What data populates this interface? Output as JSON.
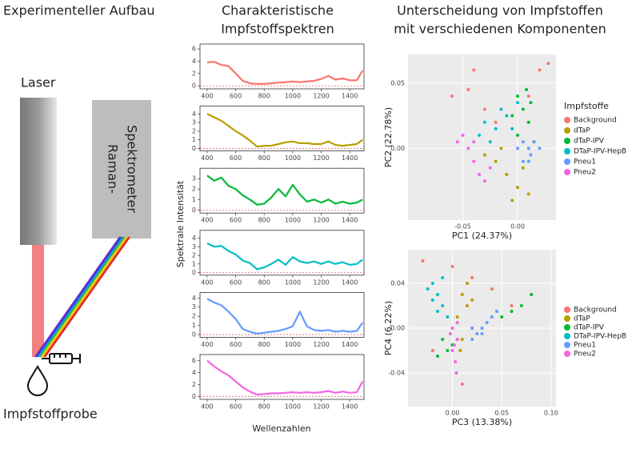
{
  "setup": {
    "title": "Experimenteller Aufbau",
    "laser": "Laser",
    "spectrometer": [
      "Raman-",
      "Spektrometer"
    ],
    "sample": "Impfstoffprobe"
  },
  "spectra": {
    "title": [
      "Charakteristische",
      "Impfstoffspektren"
    ],
    "y_label": "Spektrale Intensität",
    "x_label": "Wellenzahlen"
  },
  "pca": {
    "title": [
      "Unterscheidung von Impfstoffen",
      "mit verschiedenen Komponenten"
    ]
  },
  "chart_data": [
    {
      "type": "line",
      "color": "#f8766d",
      "x": [
        400,
        450,
        500,
        550,
        600,
        650,
        700,
        750,
        800,
        850,
        900,
        950,
        1000,
        1050,
        1100,
        1150,
        1200,
        1250,
        1300,
        1350,
        1400,
        1450,
        1490
      ],
      "values": [
        3.8,
        3.9,
        3.4,
        3.2,
        2.0,
        0.8,
        0.4,
        0.3,
        0.3,
        0.4,
        0.5,
        0.6,
        0.7,
        0.6,
        0.7,
        0.8,
        1.1,
        1.6,
        1.0,
        1.2,
        0.9,
        0.9,
        2.5
      ],
      "xlim": [
        350,
        1500
      ],
      "ylim": [
        -0.5,
        6.8
      ],
      "xticks": [
        400,
        600,
        800,
        1000,
        1200,
        1400
      ],
      "yticks": [
        0,
        2,
        4,
        6
      ]
    },
    {
      "type": "line",
      "color": "#b79f00",
      "x": [
        400,
        450,
        500,
        550,
        600,
        650,
        700,
        750,
        800,
        850,
        900,
        950,
        1000,
        1050,
        1100,
        1150,
        1200,
        1250,
        1300,
        1350,
        1400,
        1450,
        1490
      ],
      "values": [
        4.0,
        3.6,
        3.2,
        2.6,
        2.0,
        1.5,
        0.9,
        0.2,
        0.3,
        0.3,
        0.5,
        0.7,
        0.8,
        0.6,
        0.6,
        0.5,
        0.5,
        0.8,
        0.4,
        0.3,
        0.4,
        0.5,
        1.0
      ],
      "xlim": [
        350,
        1500
      ],
      "ylim": [
        -0.3,
        4.9
      ],
      "xticks": [
        400,
        600,
        800,
        1000,
        1200,
        1400
      ],
      "yticks": [
        0,
        1,
        2,
        3,
        4
      ]
    },
    {
      "type": "line",
      "color": "#00ba38",
      "x": [
        400,
        450,
        500,
        550,
        600,
        650,
        700,
        750,
        800,
        850,
        900,
        950,
        1000,
        1050,
        1100,
        1150,
        1200,
        1250,
        1300,
        1350,
        1400,
        1450,
        1490
      ],
      "values": [
        3.3,
        2.8,
        3.1,
        2.3,
        2.0,
        1.4,
        1.0,
        0.5,
        0.6,
        1.2,
        2.0,
        1.3,
        2.4,
        1.5,
        0.8,
        1.0,
        0.7,
        1.0,
        0.6,
        0.8,
        0.6,
        0.7,
        1.0
      ],
      "xlim": [
        350,
        1500
      ],
      "ylim": [
        -0.3,
        4.0
      ],
      "xticks": [
        400,
        600,
        800,
        1000,
        1200,
        1400
      ],
      "yticks": [
        0,
        1,
        2,
        3
      ]
    },
    {
      "type": "line",
      "color": "#00bfc4",
      "x": [
        400,
        450,
        500,
        550,
        600,
        650,
        700,
        750,
        800,
        850,
        900,
        950,
        1000,
        1050,
        1100,
        1150,
        1200,
        1250,
        1300,
        1350,
        1400,
        1450,
        1490
      ],
      "values": [
        3.4,
        3.0,
        3.1,
        2.5,
        2.1,
        1.4,
        1.1,
        0.4,
        0.6,
        1.0,
        1.5,
        0.9,
        1.8,
        1.3,
        1.1,
        1.3,
        1.0,
        1.3,
        1.0,
        1.2,
        0.9,
        1.0,
        1.5
      ],
      "xlim": [
        350,
        1500
      ],
      "ylim": [
        -0.3,
        4.9
      ],
      "xticks": [
        400,
        600,
        800,
        1000,
        1200,
        1400
      ],
      "yticks": [
        0,
        1,
        2,
        3,
        4
      ]
    },
    {
      "type": "line",
      "color": "#619cff",
      "x": [
        400,
        450,
        500,
        550,
        600,
        650,
        700,
        750,
        800,
        850,
        900,
        950,
        1000,
        1050,
        1100,
        1150,
        1200,
        1250,
        1300,
        1350,
        1400,
        1450,
        1490
      ],
      "values": [
        3.9,
        3.5,
        3.2,
        2.5,
        1.7,
        0.6,
        0.3,
        0.1,
        0.2,
        0.3,
        0.4,
        0.6,
        0.9,
        2.5,
        0.9,
        0.5,
        0.4,
        0.5,
        0.3,
        0.4,
        0.3,
        0.4,
        1.3
      ],
      "xlim": [
        350,
        1500
      ],
      "ylim": [
        -0.3,
        4.6
      ],
      "xticks": [
        400,
        600,
        800,
        1000,
        1200,
        1400
      ],
      "yticks": [
        0,
        1,
        2,
        3,
        4
      ]
    },
    {
      "type": "line",
      "color": "#f564e3",
      "x": [
        400,
        450,
        500,
        550,
        600,
        650,
        700,
        750,
        800,
        850,
        900,
        950,
        1000,
        1050,
        1100,
        1150,
        1200,
        1250,
        1300,
        1350,
        1400,
        1450,
        1490
      ],
      "values": [
        6.0,
        5.0,
        4.2,
        3.5,
        2.5,
        1.5,
        0.8,
        0.3,
        0.4,
        0.5,
        0.5,
        0.6,
        0.7,
        0.6,
        0.7,
        0.6,
        0.7,
        0.9,
        0.6,
        0.8,
        0.6,
        0.7,
        2.5
      ],
      "xlim": [
        350,
        1500
      ],
      "ylim": [
        -0.5,
        7.0
      ],
      "xticks": [
        400,
        600,
        800,
        1000,
        1200,
        1400
      ],
      "yticks": [
        0,
        2,
        4,
        6
      ]
    },
    {
      "type": "scatter",
      "x_label": "PC1 (24.37%)",
      "y_label": "PC2 (22.78%)",
      "legend_title": "Impfstoffe",
      "legend": "right",
      "grid": true,
      "xlim": [
        -0.1,
        0.035
      ],
      "ylim": [
        -0.055,
        0.072
      ],
      "xticks": [
        -0.05,
        {
          "value": 0,
          "label": "0.00"
        }
      ],
      "yticks": [
        {
          "value": 0,
          "label": "0.00"
        },
        0.05
      ],
      "series": [
        {
          "name": "Background",
          "color": "#f8766d",
          "x": [
            -0.04,
            -0.06,
            0.02,
            0.028,
            -0.03,
            -0.02,
            0.01,
            -0.045
          ],
          "values": [
            0.06,
            0.04,
            0.06,
            0.065,
            0.03,
            0.02,
            0.04,
            0.045
          ]
        },
        {
          "name": "dTaP",
          "color": "#b79f00",
          "x": [
            -0.02,
            -0.01,
            0.0,
            -0.015,
            0.005,
            -0.03,
            0.01,
            -0.005
          ],
          "values": [
            -0.01,
            -0.02,
            -0.03,
            0.0,
            -0.015,
            -0.005,
            -0.035,
            -0.04
          ]
        },
        {
          "name": "dTaP-IPV",
          "color": "#00ba38",
          "x": [
            0.0,
            0.005,
            0.01,
            0.0,
            0.012,
            -0.005,
            0.015,
            0.008
          ],
          "values": [
            0.04,
            0.03,
            0.02,
            0.01,
            0.035,
            0.025,
            0.005,
            0.045
          ]
        },
        {
          "name": "DTaP-IPV-HepB",
          "color": "#00bfc4",
          "x": [
            -0.03,
            -0.02,
            -0.01,
            -0.035,
            -0.015,
            0.0,
            -0.025,
            -0.005
          ],
          "values": [
            0.02,
            0.015,
            0.025,
            0.01,
            0.03,
            0.035,
            0.005,
            0.015
          ]
        },
        {
          "name": "Pneu1",
          "color": "#619cff",
          "x": [
            0.0,
            0.01,
            0.005,
            0.015,
            0.01,
            0.02,
            0.005,
            0.012
          ],
          "values": [
            0.0,
            0.0,
            -0.01,
            0.005,
            -0.01,
            0.0,
            0.005,
            -0.005
          ]
        },
        {
          "name": "Pneu2",
          "color": "#f564e3",
          "x": [
            -0.05,
            -0.045,
            -0.04,
            -0.035,
            -0.03,
            -0.055,
            -0.025,
            -0.04
          ],
          "values": [
            0.01,
            0.0,
            -0.01,
            -0.02,
            -0.025,
            0.005,
            -0.015,
            0.005
          ]
        }
      ]
    },
    {
      "type": "scatter",
      "x_label": "PC3 (13.38%)",
      "y_label": "PC4 (6.22%)",
      "legend": "right",
      "grid": true,
      "xlim": [
        -0.045,
        0.105
      ],
      "ylim": [
        -0.07,
        0.07
      ],
      "xticks": [
        {
          "value": 0,
          "label": "0.00"
        },
        0.05,
        {
          "value": 0.1,
          "label": "0.10"
        }
      ],
      "yticks": [
        -0.04,
        {
          "value": 0,
          "label": "0.00"
        },
        0.04
      ],
      "series": [
        {
          "name": "Background",
          "color": "#f8766d",
          "x": [
            -0.03,
            0.0,
            0.02,
            0.04,
            -0.02,
            0.06,
            0.01,
            0.08
          ],
          "values": [
            0.06,
            0.055,
            0.045,
            0.035,
            -0.02,
            0.02,
            -0.05,
            0.03
          ]
        },
        {
          "name": "dTaP",
          "color": "#b79f00",
          "x": [
            0.01,
            0.015,
            0.005,
            0.02,
            0.01,
            0.015,
            0.008,
            0.02
          ],
          "values": [
            0.03,
            0.02,
            0.01,
            0.0,
            -0.01,
            0.04,
            -0.02,
            0.025
          ]
        },
        {
          "name": "dTaP-IPV",
          "color": "#00ba38",
          "x": [
            -0.01,
            -0.005,
            0.0,
            0.05,
            0.06,
            0.07,
            0.08,
            -0.015
          ],
          "values": [
            -0.01,
            -0.02,
            -0.015,
            0.01,
            0.015,
            0.02,
            0.03,
            -0.025
          ]
        },
        {
          "name": "DTaP-IPV-HepB",
          "color": "#00bfc4",
          "x": [
            -0.02,
            -0.015,
            -0.01,
            -0.02,
            -0.025,
            -0.005,
            -0.015,
            -0.01
          ],
          "values": [
            0.04,
            0.03,
            0.02,
            0.025,
            0.035,
            0.01,
            0.015,
            0.045
          ]
        },
        {
          "name": "Pneu1",
          "color": "#619cff",
          "x": [
            0.02,
            0.025,
            0.03,
            0.035,
            0.04,
            0.02,
            0.045,
            0.03
          ],
          "values": [
            0.0,
            -0.005,
            0.0,
            0.005,
            0.01,
            -0.01,
            0.015,
            -0.005
          ]
        },
        {
          "name": "Pneu2",
          "color": "#f564e3",
          "x": [
            0.0,
            0.005,
            0.0,
            0.003,
            0.005,
            -0.002,
            0.004,
            0.002
          ],
          "values": [
            0.0,
            -0.01,
            -0.02,
            -0.03,
            0.005,
            -0.005,
            -0.04,
            -0.015
          ]
        }
      ]
    }
  ]
}
